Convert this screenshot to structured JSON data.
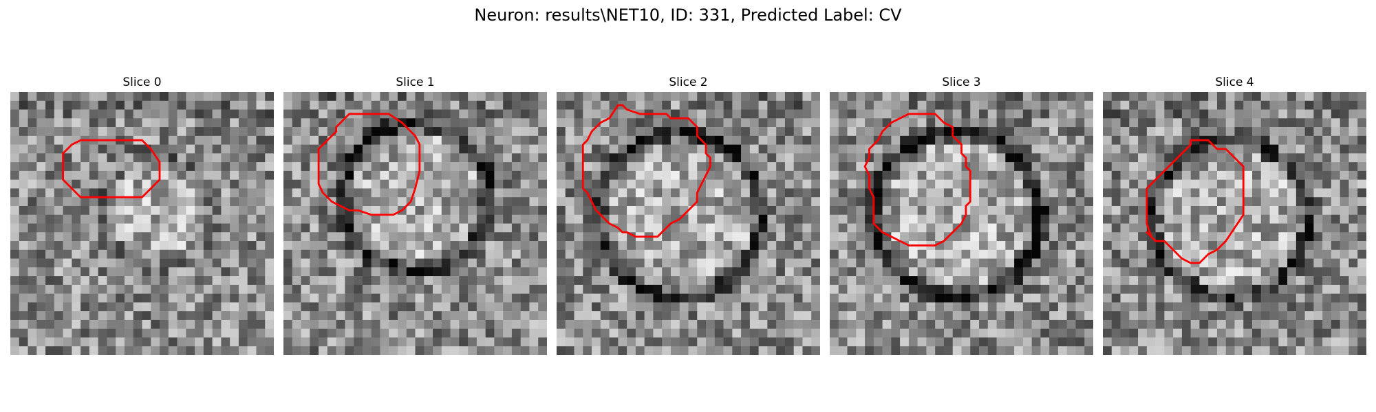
{
  "figure": {
    "title": "Neuron: results\\NET10, ID: 331, Predicted Label: CV"
  },
  "panels": [
    {
      "title": "Slice 0",
      "seed": 11,
      "cx": 16.5,
      "cy": 13.5,
      "r": 5.5,
      "darkRing": 0.1,
      "contour": [
        [
          11,
          5.5
        ],
        [
          15,
          5.5
        ],
        [
          16,
          6.5
        ],
        [
          17,
          8
        ],
        [
          17,
          10
        ],
        [
          16,
          11
        ],
        [
          15,
          12
        ],
        [
          13,
          12
        ],
        [
          11,
          12
        ],
        [
          8,
          12
        ],
        [
          7,
          11
        ],
        [
          6,
          10
        ],
        [
          6,
          8
        ],
        [
          6,
          7
        ],
        [
          7,
          6
        ],
        [
          8,
          5.5
        ]
      ]
    },
    {
      "title": "Slice 1",
      "seed": 23,
      "cx": 15,
      "cy": 12,
      "r": 7.5,
      "darkRing": 0.45,
      "contour": [
        [
          7.5,
          2.5
        ],
        [
          12,
          2.5
        ],
        [
          13.5,
          3.5
        ],
        [
          15,
          5
        ],
        [
          15.5,
          6
        ],
        [
          15.5,
          9
        ],
        [
          15,
          11
        ],
        [
          14.5,
          12.5
        ],
        [
          13.5,
          13.5
        ],
        [
          12.5,
          14
        ],
        [
          10,
          14
        ],
        [
          8.5,
          13.5
        ],
        [
          7.5,
          13.5
        ],
        [
          6.5,
          13
        ],
        [
          5.5,
          12.5
        ],
        [
          4.5,
          11.5
        ],
        [
          4,
          10.5
        ],
        [
          4,
          8
        ],
        [
          4,
          6.5
        ],
        [
          5,
          5.5
        ],
        [
          6,
          4.5
        ],
        [
          6,
          4
        ],
        [
          6.5,
          3.5
        ]
      ]
    },
    {
      "title": "Slice 2",
      "seed": 37,
      "cx": 14,
      "cy": 14,
      "r": 8.5,
      "darkRing": 0.45,
      "contour": [
        [
          7,
          1.5
        ],
        [
          7.5,
          1.5
        ],
        [
          8,
          2
        ],
        [
          9.5,
          2.5
        ],
        [
          12.5,
          2.5
        ],
        [
          13,
          3
        ],
        [
          15,
          3
        ],
        [
          16,
          4
        ],
        [
          16,
          5
        ],
        [
          17,
          6
        ],
        [
          17,
          7
        ],
        [
          17.5,
          7.5
        ],
        [
          17.5,
          8.5
        ],
        [
          17,
          9.5
        ],
        [
          16.5,
          10.5
        ],
        [
          16,
          11.5
        ],
        [
          16,
          12.5
        ],
        [
          15.5,
          13
        ],
        [
          14.5,
          14
        ],
        [
          14,
          14.5
        ],
        [
          13,
          15
        ],
        [
          12,
          16
        ],
        [
          11.5,
          16.5
        ],
        [
          10,
          16.5
        ],
        [
          9,
          16.5
        ],
        [
          8,
          16
        ],
        [
          7.5,
          16
        ],
        [
          7,
          15.5
        ],
        [
          6,
          15
        ],
        [
          5,
          14
        ],
        [
          4.5,
          13.5
        ],
        [
          4,
          12.5
        ],
        [
          3.5,
          11.5
        ],
        [
          3,
          11
        ],
        [
          3,
          9.5
        ],
        [
          3,
          7.5
        ],
        [
          3,
          6
        ],
        [
          3.5,
          5.5
        ],
        [
          4,
          4.5
        ],
        [
          5,
          3.5
        ],
        [
          6,
          3
        ]
      ]
    },
    {
      "title": "Slice 3",
      "seed": 51,
      "cx": 14.5,
      "cy": 14,
      "r": 8.5,
      "darkRing": 0.55,
      "contour": [
        [
          9,
          2.5
        ],
        [
          12,
          2.5
        ],
        [
          12.5,
          3
        ],
        [
          13,
          3.5
        ],
        [
          14,
          4
        ],
        [
          14,
          5
        ],
        [
          15,
          6
        ],
        [
          15,
          7
        ],
        [
          15.5,
          7.5
        ],
        [
          15.5,
          8.5
        ],
        [
          16,
          9
        ],
        [
          16,
          11
        ],
        [
          16,
          12.5
        ],
        [
          15.5,
          13
        ],
        [
          15.5,
          14
        ],
        [
          15,
          15
        ],
        [
          14,
          16
        ],
        [
          13.5,
          16.5
        ],
        [
          13,
          17
        ],
        [
          12,
          17.5
        ],
        [
          10,
          17.5
        ],
        [
          9,
          17.5
        ],
        [
          8,
          17
        ],
        [
          7,
          16.5
        ],
        [
          6,
          16
        ],
        [
          5.5,
          15.5
        ],
        [
          5,
          15
        ],
        [
          5,
          13
        ],
        [
          5,
          12
        ],
        [
          4.5,
          11
        ],
        [
          4.5,
          9.5
        ],
        [
          4,
          8.5
        ],
        [
          4.5,
          7.5
        ],
        [
          4.5,
          6.5
        ],
        [
          5,
          6
        ],
        [
          5.5,
          5.5
        ],
        [
          6,
          4.5
        ],
        [
          7,
          3.5
        ],
        [
          8,
          3
        ]
      ]
    },
    {
      "title": "Slice 4",
      "seed": 67,
      "cx": 14.5,
      "cy": 14.5,
      "r": 8,
      "darkRing": 0.4,
      "contour": [
        [
          11,
          5.5
        ],
        [
          12,
          5.5
        ],
        [
          13,
          6.5
        ],
        [
          14,
          6.5
        ],
        [
          15,
          7.5
        ],
        [
          16,
          8.5
        ],
        [
          16,
          10
        ],
        [
          16,
          14
        ],
        [
          15,
          15.5
        ],
        [
          14,
          17
        ],
        [
          13,
          18
        ],
        [
          12,
          18.5
        ],
        [
          11,
          19.5
        ],
        [
          10,
          19.5
        ],
        [
          9,
          19
        ],
        [
          8,
          18
        ],
        [
          7,
          17
        ],
        [
          6,
          17
        ],
        [
          5,
          16
        ],
        [
          5.5,
          16.5
        ],
        [
          5,
          15
        ],
        [
          5,
          13
        ],
        [
          5,
          11
        ],
        [
          6,
          10
        ],
        [
          7,
          9
        ],
        [
          8,
          8
        ],
        [
          8.5,
          7.5
        ],
        [
          9,
          7
        ],
        [
          10,
          6
        ],
        [
          10,
          5.5
        ]
      ]
    }
  ],
  "colors": {
    "contour": "#ff0000"
  }
}
